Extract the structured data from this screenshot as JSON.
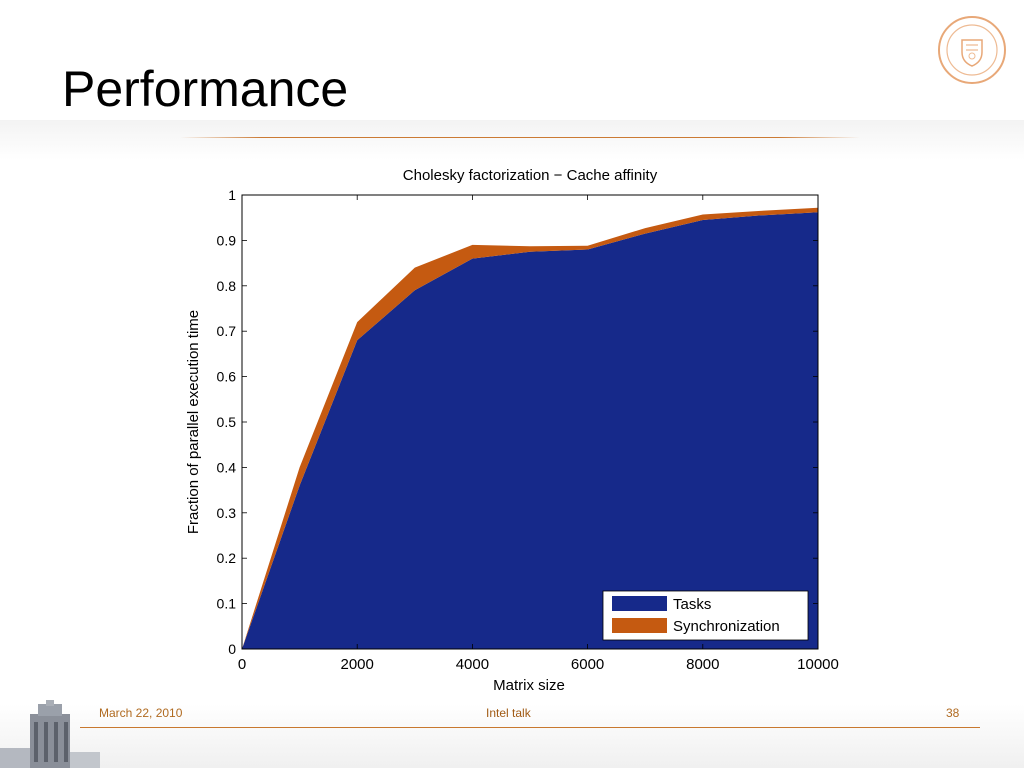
{
  "slide": {
    "title": "Performance"
  },
  "footer": {
    "date": "March 22, 2010",
    "center": "Intel talk",
    "page": "38"
  },
  "colors": {
    "tasks": "#16298a",
    "synchronization": "#c55a11",
    "accent": "#c8782e"
  },
  "icons": {
    "logo": "university-seal-icon",
    "building": "tower-icon"
  },
  "chart_data": {
    "type": "area",
    "stacked": true,
    "title": "Cholesky factorization − Cache affinity",
    "xlabel": "Matrix size",
    "ylabel": "Fraction of parallel execution time",
    "xlim": [
      0,
      10000
    ],
    "ylim": [
      0,
      1
    ],
    "xticks": [
      0,
      2000,
      4000,
      6000,
      8000,
      10000
    ],
    "yticks": [
      0,
      0.1,
      0.2,
      0.3,
      0.4,
      0.5,
      0.6,
      0.7,
      0.8,
      0.9,
      1
    ],
    "ytick_labels": [
      "0",
      "0.1",
      "0.2",
      "0.3",
      "0.4",
      "0.5",
      "0.6",
      "0.7",
      "0.8",
      "0.9",
      "1"
    ],
    "grid": false,
    "legend_position": "bottom-right",
    "x": [
      0,
      1000,
      2000,
      3000,
      4000,
      5000,
      6000,
      7000,
      8000,
      9000,
      10000
    ],
    "series": [
      {
        "name": "Tasks",
        "values": [
          0,
          0.36,
          0.68,
          0.79,
          0.86,
          0.875,
          0.88,
          0.915,
          0.945,
          0.955,
          0.962
        ]
      },
      {
        "name": "Synchronization",
        "values": [
          0,
          0.04,
          0.04,
          0.05,
          0.03,
          0.012,
          0.008,
          0.012,
          0.012,
          0.01,
          0.01
        ]
      }
    ]
  }
}
